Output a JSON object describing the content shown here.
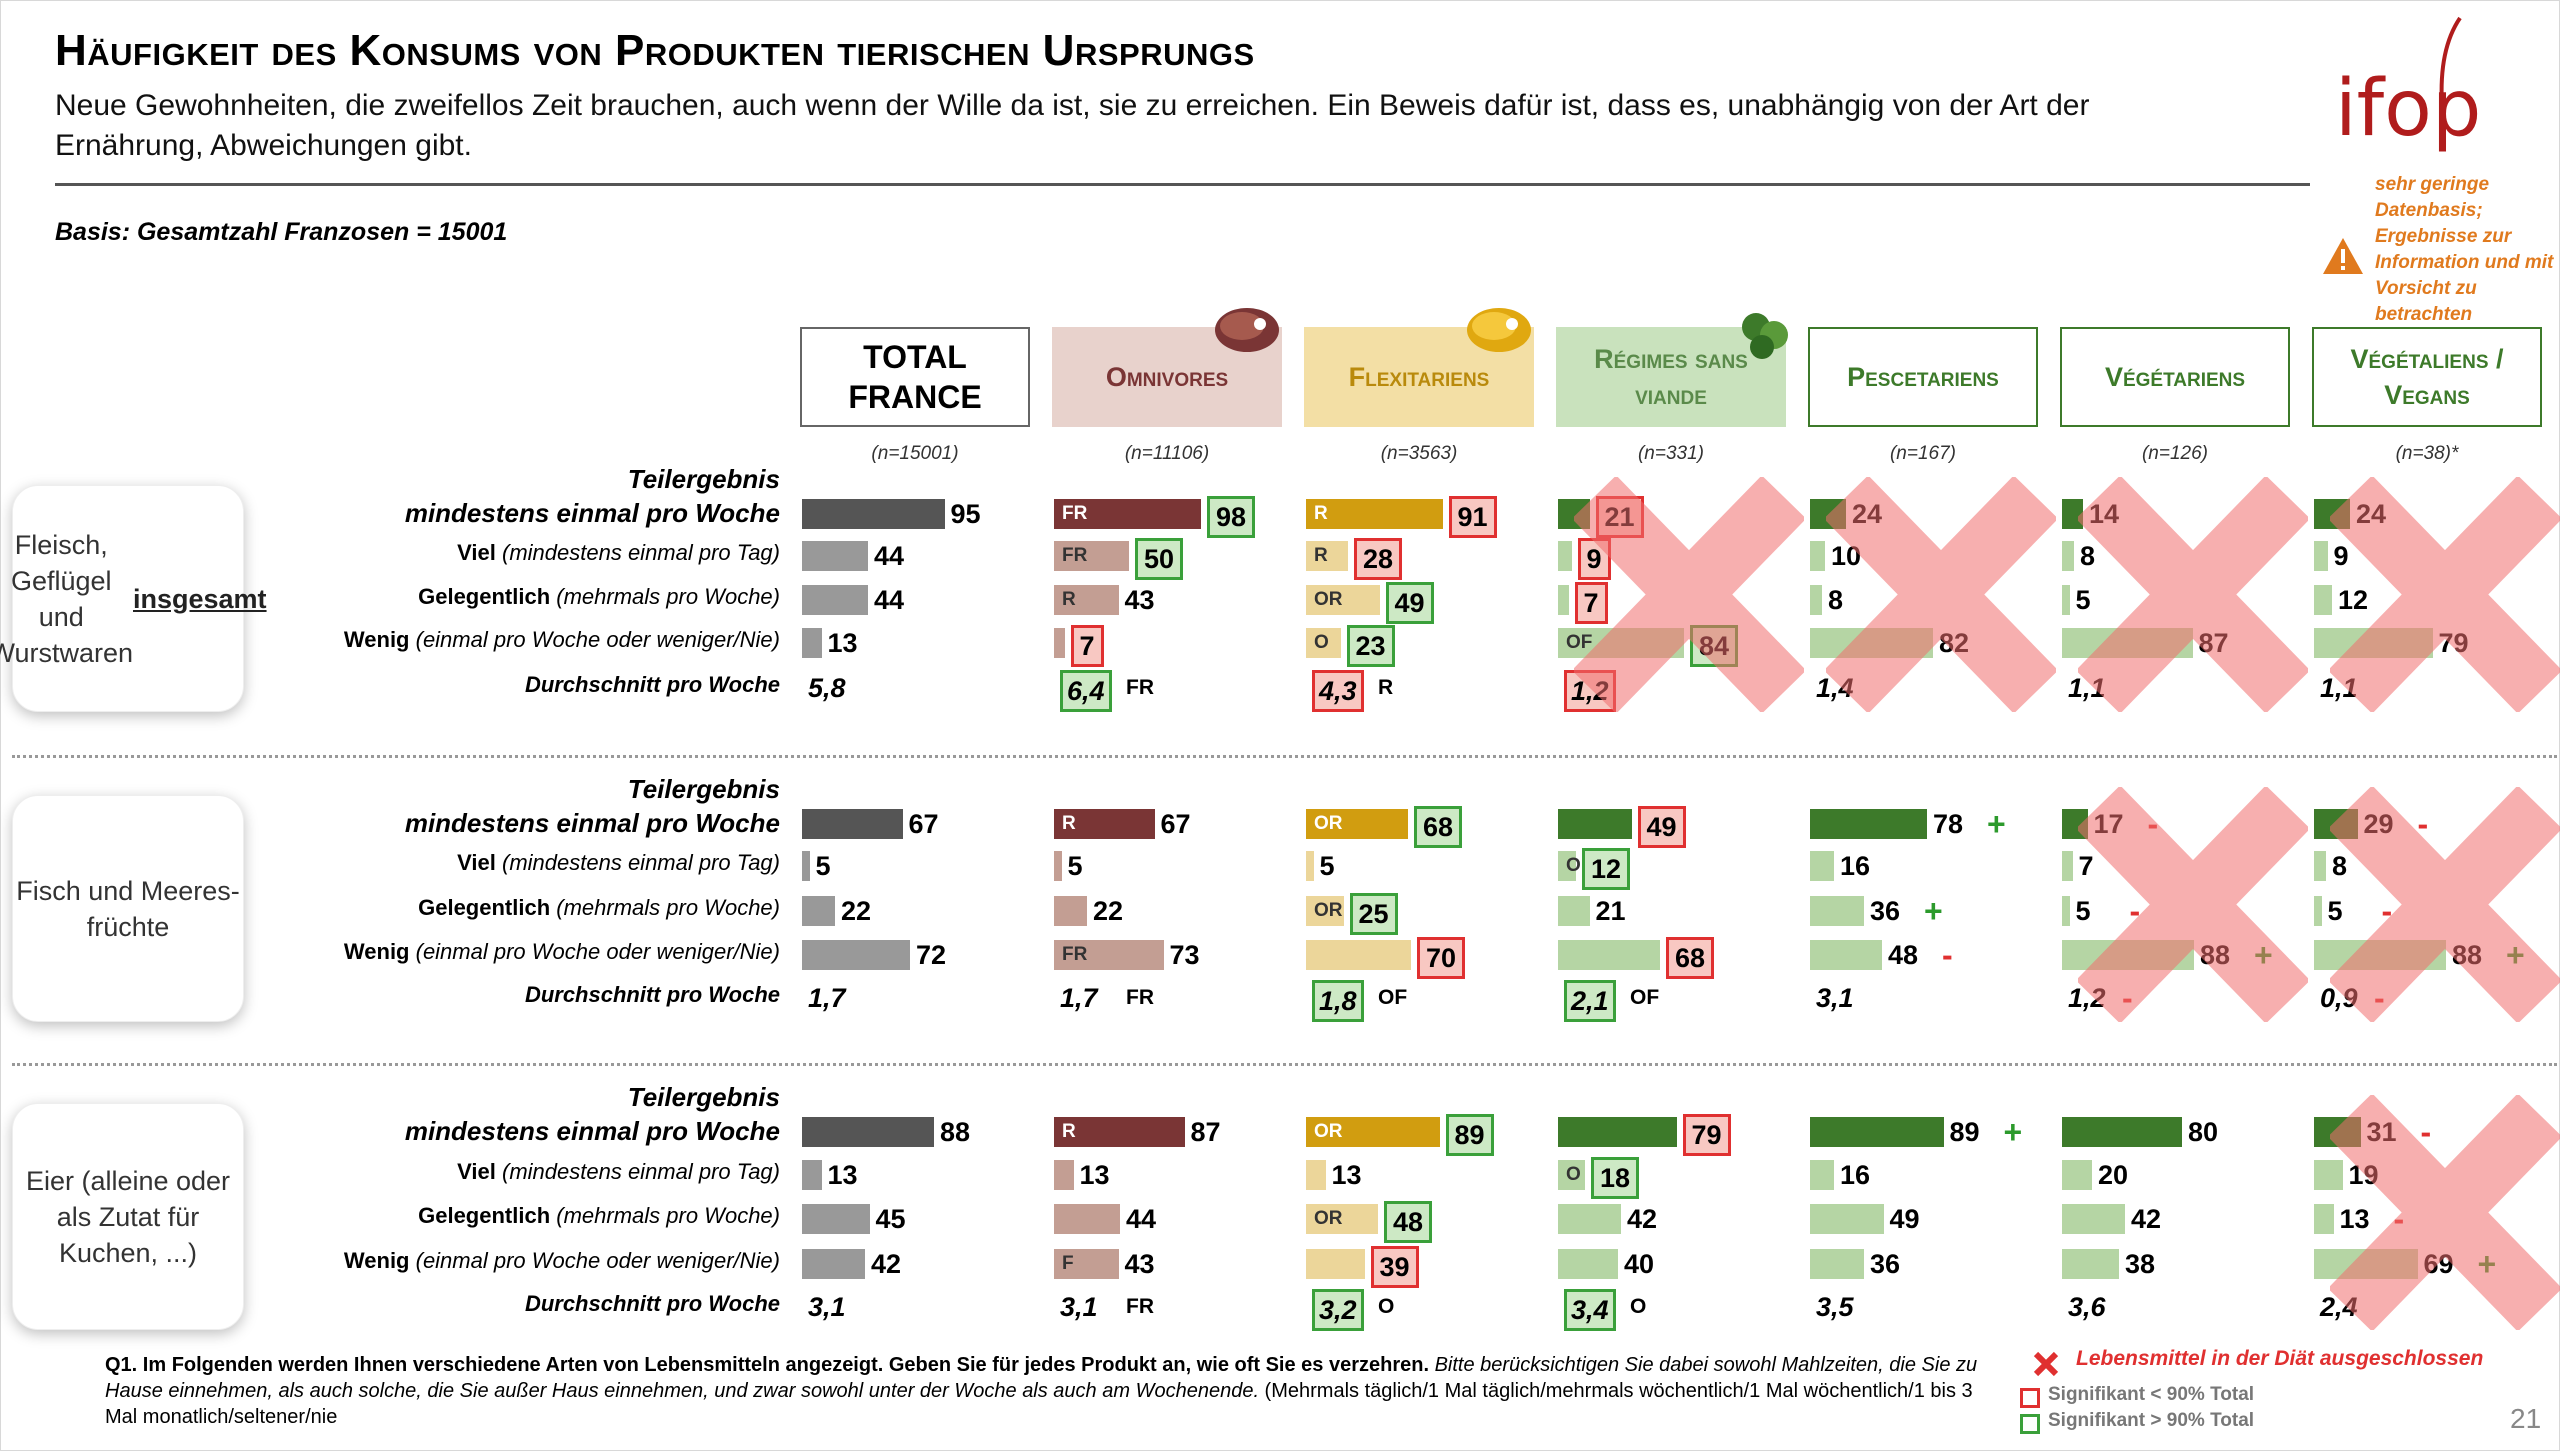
{
  "title": "Häufigkeit des Konsums von Produkten tierischen Ursprungs",
  "subtitle": "Neue Gewohnheiten, die zweifellos Zeit brauchen, auch wenn der Wille da ist, sie zu erreichen. Ein Beweis dafür ist, dass es, unabhängig von der Art der Ernährung, Abweichungen gibt.",
  "basis": "Basis: Gesamtzahl Franzosen = 15001",
  "logo_text": "ifop",
  "warning": "sehr geringe Datenbasis; Ergebnisse zur Information und mit Vorsicht zu betrachten",
  "footnote_bold": "Q1. Im Folgenden werden Ihnen verschiedene Arten von Lebensmitteln angezeigt. Geben Sie für jedes Produkt an, wie oft Sie es verzehren.",
  "footnote_italic": " Bitte berücksichtigen Sie dabei sowohl Mahlzeiten, die Sie zu Hause einnehmen, als auch solche, die Sie außer Haus einnehmen, und zwar sowohl unter der Woche als auch am Wochenende.",
  "footnote_rest": " (Mehrmals täglich/1 Mal täglich/mehrmals wöchentlich/1 Mal wöchentlich/1 bis 3 Mal monatlich/seltener/nie",
  "legend": {
    "excluded": "Lebensmittel in der Diät ausgeschlossen",
    "sig_low": "Signifikant < 90% Total",
    "sig_high": "Signifikant > 90% Total"
  },
  "page_number": "21",
  "colors": {
    "total": "#555555",
    "omni": "#7a3535",
    "flexi": "#d19d10",
    "veg": "#3d7a2a",
    "red_box": "#e03030",
    "green_box": "#3aa03a"
  },
  "chart_data": {
    "type": "bar",
    "columns": [
      {
        "name": "TOTAL FRANCE",
        "n": "(n=15001)"
      },
      {
        "name": "Omnivores",
        "n": "(n=11106)",
        "icon": "steak-icon"
      },
      {
        "name": "Flexitariens",
        "n": "(n=3563)",
        "icon": "steak-icon"
      },
      {
        "name": "Régimes sans viande",
        "n": "(n=331)",
        "icon": "vegetables-icon"
      },
      {
        "name": "Pescetariens",
        "n": "(n=167)"
      },
      {
        "name": "Végétariens",
        "n": "(n=126)"
      },
      {
        "name": "Végétaliens / Vegans",
        "n": "(n=38)*"
      }
    ],
    "row_labels": [
      {
        "bold": "Teilergebnis",
        "bold2": "mindestens einmal pro Woche"
      },
      {
        "bold": "Viel",
        "rest": " (mindestens einmal pro Tag)"
      },
      {
        "bold": "Gelegentlich",
        "rest": " (mehrmals pro Woche)"
      },
      {
        "bold": "Wenig",
        "rest": " (einmal pro Woche oder weniger/Nie)"
      },
      {
        "bold": "Durchschnitt pro Woche",
        "rest": ""
      }
    ],
    "sections": [
      {
        "label": "Fleisch, Geflügel und Wurstwaren",
        "label_emph": "insgesamt",
        "values": [
          [
            95,
            44,
            44,
            13
          ],
          [
            98,
            50,
            43,
            7
          ],
          [
            91,
            28,
            49,
            23
          ],
          [
            21,
            9,
            7,
            84
          ],
          [
            24,
            10,
            8,
            82
          ],
          [
            14,
            8,
            5,
            87
          ],
          [
            24,
            9,
            12,
            79
          ]
        ],
        "averages": [
          "5,8",
          "6,4",
          "4,3",
          "1,2",
          "1,4",
          "1,1",
          "1,1"
        ],
        "avg_suffix": [
          "",
          "FR",
          "R",
          "",
          "",
          "",
          ""
        ],
        "excluded": [
          false,
          false,
          false,
          true,
          true,
          true,
          true
        ]
      },
      {
        "label": "Fisch und Meeres-früchte",
        "label_emph": "",
        "values": [
          [
            67,
            5,
            22,
            72
          ],
          [
            67,
            5,
            22,
            73
          ],
          [
            68,
            5,
            25,
            70
          ],
          [
            49,
            12,
            21,
            68
          ],
          [
            78,
            16,
            36,
            48
          ],
          [
            17,
            7,
            5,
            88
          ],
          [
            29,
            8,
            5,
            88
          ]
        ],
        "averages": [
          "1,7",
          "1,7",
          "1,8",
          "2,1",
          "3,1",
          "1,2",
          "0,9"
        ],
        "avg_suffix": [
          "",
          "FR",
          "OF",
          "OF",
          "",
          "",
          ""
        ],
        "excluded": [
          false,
          false,
          false,
          false,
          false,
          true,
          true
        ]
      },
      {
        "label": "Eier (alleine oder als Zutat für Kuchen, ...)",
        "label_emph": "",
        "values": [
          [
            88,
            13,
            45,
            42
          ],
          [
            87,
            13,
            44,
            43
          ],
          [
            89,
            13,
            48,
            39
          ],
          [
            79,
            18,
            42,
            40
          ],
          [
            89,
            16,
            49,
            36
          ],
          [
            80,
            20,
            42,
            38
          ],
          [
            31,
            19,
            13,
            69
          ]
        ],
        "averages": [
          "3,1",
          "3,1",
          "3,2",
          "3,4",
          "3,5",
          "3,6",
          "2,4"
        ],
        "avg_suffix": [
          "",
          "FR",
          "O",
          "O",
          "",
          "",
          ""
        ],
        "excluded": [
          false,
          false,
          false,
          false,
          false,
          false,
          true
        ]
      }
    ]
  }
}
